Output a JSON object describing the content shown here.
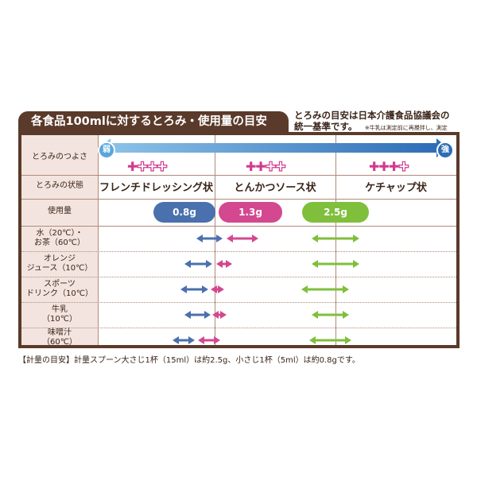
{
  "title": "各食品100mlに対するとろみ・使用量の目安",
  "note": {
    "line1": "とろみの目安は日本介護食品協議会の",
    "line2": "統一基準です。",
    "small": "※牛乳は測定前に再攪拌し、測定"
  },
  "header_labels": {
    "strength": "とろみのつよさ",
    "state": "とろみの状態",
    "amount": "使用量"
  },
  "strength": {
    "weak": "弱",
    "strong": "強",
    "levels": [
      {
        "filled": 1,
        "total": 4
      },
      {
        "filled": 2,
        "total": 4
      },
      {
        "filled": 3,
        "total": 4
      }
    ]
  },
  "states": [
    "フレンチドレッシング状",
    "とんかつソース状",
    "ケチャップ状"
  ],
  "amounts": [
    {
      "label": "0.8g",
      "color": "#4a70ae"
    },
    {
      "label": "1.3g",
      "color": "#d3488f"
    },
    {
      "label": "2.5g",
      "color": "#7fbf3c"
    }
  ],
  "foods": [
    {
      "name": "水（20℃）・\nお茶（60℃）"
    },
    {
      "name": "オレンジ\nジュース（10℃）"
    },
    {
      "name": "スポーツ\nドリンク（10℃）"
    },
    {
      "name": "牛乳\n（10℃）"
    },
    {
      "name": "味噌汁\n（60℃）"
    }
  ],
  "footer": "【計量の目安】計量スプーン大さじ1杯（15ml）は約2.5g、小さじ1杯（5ml）は約0.8gです。",
  "colors": {
    "blue": "#4a70ae",
    "pink": "#d3488f",
    "green": "#7fbf3c",
    "brown": "#5a3a2a",
    "gradient_start": "#5aa7dc",
    "gradient_end": "#2e6db6"
  }
}
